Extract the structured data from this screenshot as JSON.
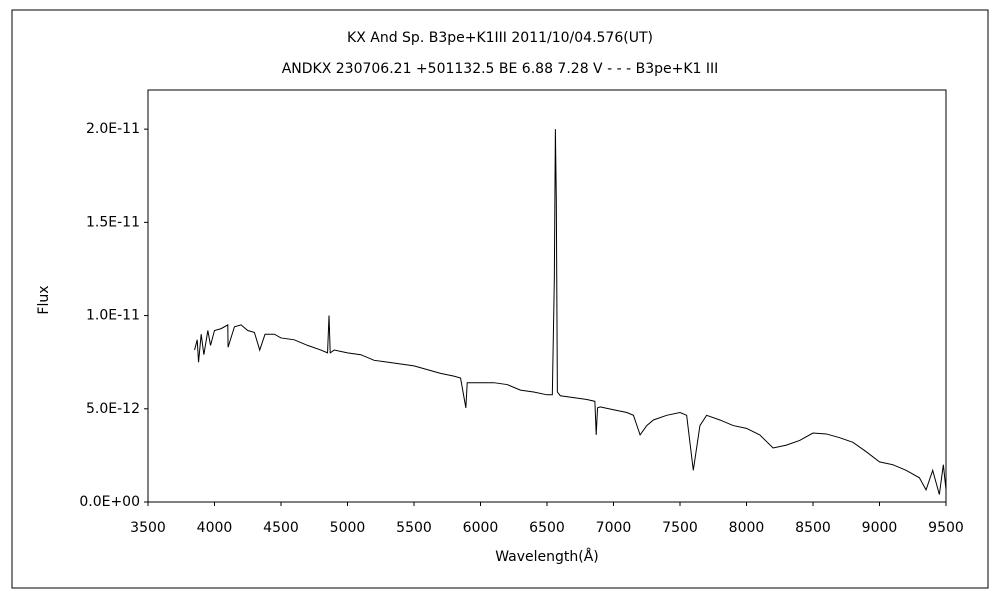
{
  "chart_data": {
    "type": "line",
    "title": "KX And    Sp. B3pe+K1III    2011/10/04.576(UT)",
    "subtitle": "ANDKX 230706.21 +501132.5 BE 6.88 7.28 V - - - B3pe+K1 III",
    "x_label": "Wavelength(Å)",
    "y_label": "Flux",
    "xlim": [
      3500,
      9500
    ],
    "xticks": [
      3500,
      4000,
      4500,
      5000,
      5500,
      6000,
      6500,
      7000,
      7500,
      8000,
      8500,
      9000,
      9500
    ],
    "ylim": [
      0,
      2.21e-11
    ],
    "yticks": [
      {
        "value": 0,
        "label": "0.0E+00"
      },
      {
        "value": 5e-12,
        "label": "5.0E-12"
      },
      {
        "value": 1e-11,
        "label": "1.0E-11"
      },
      {
        "value": 1.5e-11,
        "label": "1.5E-11"
      },
      {
        "value": 2e-11,
        "label": "2.0E-11"
      }
    ],
    "grid": false,
    "x": [
      3850,
      3870,
      3880,
      3900,
      3920,
      3950,
      3970,
      4000,
      4050,
      4100,
      4102,
      4150,
      4200,
      4250,
      4300,
      4340,
      4380,
      4450,
      4500,
      4600,
      4700,
      4800,
      4850,
      4861,
      4870,
      4900,
      5000,
      5100,
      5200,
      5300,
      5400,
      5500,
      5600,
      5700,
      5800,
      5850,
      5890,
      5900,
      6000,
      6100,
      6200,
      6300,
      6400,
      6500,
      6540,
      6555,
      6563,
      6570,
      6578,
      6600,
      6700,
      6800,
      6860,
      6870,
      6880,
      6900,
      7000,
      7100,
      7150,
      7200,
      7250,
      7300,
      7400,
      7500,
      7550,
      7600,
      7650,
      7700,
      7800,
      7900,
      8000,
      8100,
      8200,
      8300,
      8400,
      8500,
      8600,
      8700,
      8800,
      8900,
      9000,
      9100,
      9200,
      9300,
      9350,
      9400,
      9450,
      9480,
      9500
    ],
    "series": [
      {
        "name": "Flux",
        "color": "#000000",
        "values": [
          8.15e-12,
          8.7e-12,
          7.5e-12,
          9e-12,
          7.9e-12,
          9.2e-12,
          8.4e-12,
          9.2e-12,
          9.3e-12,
          9.5e-12,
          8.3e-12,
          9.4e-12,
          9.5e-12,
          9.2e-12,
          9.1e-12,
          8.15e-12,
          9e-12,
          9e-12,
          8.8e-12,
          8.7e-12,
          8.4e-12,
          8.15e-12,
          8e-12,
          1e-11,
          8e-12,
          8.15e-12,
          8e-12,
          7.9e-12,
          7.6e-12,
          7.5e-12,
          7.4e-12,
          7.3e-12,
          7.1e-12,
          6.9e-12,
          6.75e-12,
          6.65e-12,
          5.05e-12,
          6.4e-12,
          6.4e-12,
          6.4e-12,
          6.3e-12,
          6e-12,
          5.9e-12,
          5.75e-12,
          5.75e-12,
          1.19e-11,
          2e-11,
          1.62e-11,
          5.9e-12,
          5.7e-12,
          5.6e-12,
          5.5e-12,
          5.4e-12,
          3.6e-12,
          5.05e-12,
          5.1e-12,
          4.95e-12,
          4.8e-12,
          4.65e-12,
          3.6e-12,
          4.1e-12,
          4.4e-12,
          4.65e-12,
          4.8e-12,
          4.65e-12,
          1.7e-12,
          4.1e-12,
          4.65e-12,
          4.4e-12,
          4.1e-12,
          3.95e-12,
          3.6e-12,
          2.9e-12,
          3.05e-12,
          3.3e-12,
          3.7e-12,
          3.65e-12,
          3.45e-12,
          3.2e-12,
          2.7e-12,
          2.15e-12,
          2e-12,
          1.7e-12,
          1.3e-12,
          6.5e-13,
          1.7e-12,
          4e-13,
          2e-12,
          6.5e-13
        ]
      }
    ]
  }
}
